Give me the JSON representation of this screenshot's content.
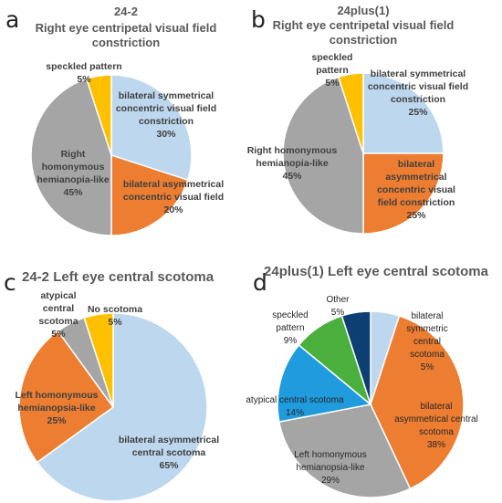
{
  "chart_data": [
    {
      "type": "pie",
      "panel": "a",
      "title_lines": [
        "24-2",
        "Right eye centripetal visual field",
        "constriction"
      ],
      "slices": [
        {
          "label_lines": [
            "bilateral symmetrical",
            "concentric visual field",
            "constriction",
            "30%"
          ],
          "value": 30,
          "color": "#BDD7EE"
        },
        {
          "label_lines": [
            "bilateral asymmetrical",
            "concentric visual field",
            "20%"
          ],
          "value": 20,
          "color": "#ED7D31"
        },
        {
          "label_lines": [
            "Right",
            "homonymous",
            "hemianopia-like",
            "45%"
          ],
          "value": 45,
          "color": "#A5A5A5"
        },
        {
          "label_lines": [
            "speckled pattern",
            "5%"
          ],
          "value": 5,
          "color": "#FFC000"
        }
      ]
    },
    {
      "type": "pie",
      "panel": "b",
      "title_lines": [
        "24plus(1)",
        "Right eye centripetal visual field",
        "constriction"
      ],
      "slices": [
        {
          "label_lines": [
            "bilateral symmetrical",
            "concentric visual field",
            "constriction",
            "25%"
          ],
          "value": 25,
          "color": "#BDD7EE"
        },
        {
          "label_lines": [
            "bilateral",
            "asymmetrical",
            "concentric visual",
            "field constriction",
            "25%"
          ],
          "value": 25,
          "color": "#ED7D31"
        },
        {
          "label_lines": [
            "Right homonymous",
            "hemianopia-like",
            "45%"
          ],
          "value": 45,
          "color": "#A5A5A5"
        },
        {
          "label_lines": [
            "speckled",
            "pattern",
            "5%"
          ],
          "value": 5,
          "color": "#FFC000"
        }
      ]
    },
    {
      "type": "pie",
      "panel": "c",
      "title_lines": [
        "24-2 Left eye central scotoma"
      ],
      "slices": [
        {
          "label_lines": [
            "bilateral asymmetrical",
            "central scotoma",
            "65%"
          ],
          "value": 65,
          "color": "#BDD7EE"
        },
        {
          "label_lines": [
            "Left homonymous",
            "hemianopsia-like",
            "25%"
          ],
          "value": 25,
          "color": "#ED7D31"
        },
        {
          "label_lines": [
            "atypical",
            "central",
            "scotoma",
            "5%"
          ],
          "value": 5,
          "color": "#A5A5A5"
        },
        {
          "label_lines": [
            "No scotoma",
            "5%"
          ],
          "value": 5,
          "color": "#FFC000"
        }
      ]
    },
    {
      "type": "pie",
      "panel": "d",
      "title_lines": [
        "24plus(1) Left eye central scotoma"
      ],
      "slices": [
        {
          "label_lines": [
            "bilateral",
            "symmetric",
            "central",
            "scotoma",
            "5%"
          ],
          "value": 5,
          "color": "#BDD7EE"
        },
        {
          "label_lines": [
            "bilateral",
            "asymmetrical central",
            "scotoma",
            "38%"
          ],
          "value": 38,
          "color": "#ED7D31"
        },
        {
          "label_lines": [
            "Left homonymous",
            "hemianopsia-like",
            "29%"
          ],
          "value": 29,
          "color": "#A5A5A5"
        },
        {
          "label_lines": [
            "atypical central scotoma",
            "14%"
          ],
          "value": 14,
          "color": "#1F9BDE"
        },
        {
          "label_lines": [
            "speckled",
            "pattern",
            "9%"
          ],
          "value": 9,
          "color": "#4BAF3E"
        },
        {
          "label_lines": [
            "Other",
            "5%"
          ],
          "value": 5,
          "color": "#0E3F73"
        }
      ]
    }
  ]
}
